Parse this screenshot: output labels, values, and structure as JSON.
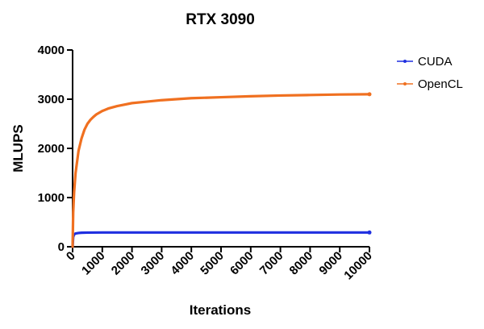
{
  "chart_data": {
    "type": "line",
    "title": "RTX 3090",
    "xlabel": "Iterations",
    "ylabel": "MLUPS",
    "xlim": [
      0,
      10000
    ],
    "ylim": [
      0,
      4000
    ],
    "x_ticks": [
      0,
      1000,
      2000,
      3000,
      4000,
      5000,
      6000,
      7000,
      8000,
      9000,
      10000
    ],
    "y_ticks": [
      0,
      1000,
      2000,
      3000,
      4000
    ],
    "grid": false,
    "legend_position": "top-right",
    "series": [
      {
        "name": "CUDA",
        "color": "#1f2fe0",
        "x": [
          0,
          20,
          50,
          100,
          200,
          300,
          500,
          1000,
          2000,
          3000,
          4000,
          5000,
          6000,
          7000,
          8000,
          9000,
          10000
        ],
        "y": [
          0,
          200,
          250,
          270,
          280,
          285,
          288,
          290,
          290,
          290,
          290,
          290,
          290,
          290,
          290,
          290,
          290
        ]
      },
      {
        "name": "OpenCL",
        "color": "#f07020",
        "x": [
          0,
          20,
          50,
          100,
          200,
          300,
          400,
          500,
          600,
          700,
          800,
          1000,
          1200,
          1500,
          2000,
          2500,
          3000,
          4000,
          5000,
          6000,
          7000,
          8000,
          9000,
          10000
        ],
        "y": [
          0,
          700,
          1100,
          1500,
          1950,
          2200,
          2380,
          2500,
          2580,
          2640,
          2690,
          2760,
          2810,
          2860,
          2920,
          2950,
          2980,
          3020,
          3040,
          3060,
          3075,
          3085,
          3095,
          3100
        ]
      }
    ]
  }
}
